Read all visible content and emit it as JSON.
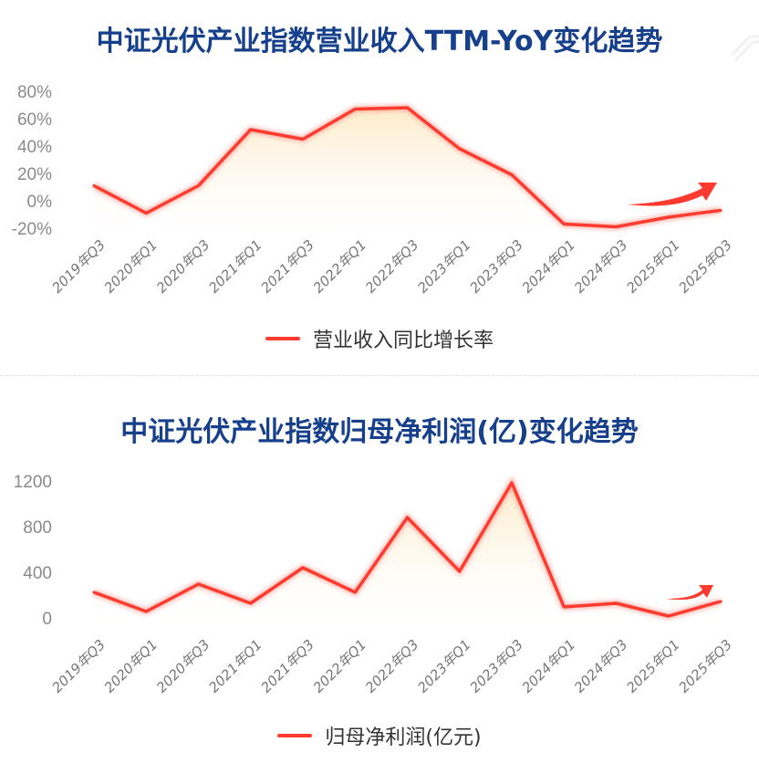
{
  "colors": {
    "line": "#ff3a2e",
    "title": "#163f8c",
    "highlight": "#c3ecfb",
    "fill_top": "#fde9c4"
  },
  "chart_data": [
    {
      "type": "area",
      "title": "中证光伏产业指数营业收入TTM-YoY变化趋势",
      "categories": [
        "2019年Q3",
        "2020年Q1",
        "2020年Q3",
        "2021年Q1",
        "2021年Q3",
        "2022年Q1",
        "2022年Q3",
        "2023年Q1",
        "2023年Q3",
        "2024年Q1",
        "2024年Q3",
        "2025年Q1",
        "2025年Q3"
      ],
      "series": [
        {
          "name": "营业收入同比增长率",
          "values": [
            11,
            -9,
            11,
            52,
            45,
            67,
            68,
            38,
            19,
            -17,
            -19,
            -12,
            -7
          ]
        }
      ],
      "unit": "%",
      "yticks": [
        "80%",
        "60%",
        "40%",
        "20%",
        "0%",
        "-20%"
      ],
      "ylim": [
        -20,
        80
      ],
      "grid": false,
      "legend": "bottom",
      "annotation": "upward-trend-arrow"
    },
    {
      "type": "area",
      "title": "中证光伏产业指数归母净利润(亿)变化趋势",
      "categories": [
        "2019年Q3",
        "2020年Q1",
        "2020年Q3",
        "2021年Q1",
        "2021年Q3",
        "2022年Q1",
        "2022年Q3",
        "2023年Q1",
        "2023年Q3",
        "2024年Q1",
        "2024年Q3",
        "2025年Q1",
        "2025年Q3"
      ],
      "series": [
        {
          "name": "归母净利润(亿元)",
          "values": [
            224,
            56,
            296,
            128,
            440,
            224,
            880,
            408,
            1184,
            96,
            128,
            16,
            144
          ]
        }
      ],
      "yticks": [
        "1200",
        "800",
        "400",
        "0"
      ],
      "ylim": [
        0,
        1200
      ],
      "grid": false,
      "legend": "bottom",
      "annotation": "upward-trend-arrow"
    }
  ]
}
